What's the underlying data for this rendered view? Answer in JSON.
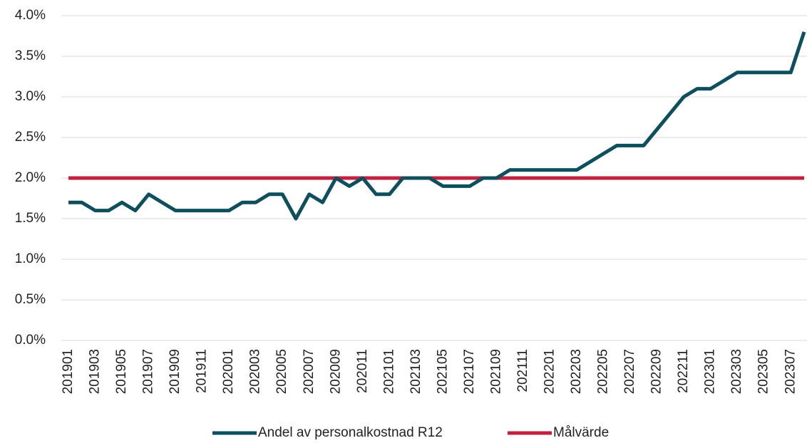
{
  "chart_data": {
    "type": "line",
    "categories": [
      "201901",
      null,
      "201903",
      null,
      "201905",
      null,
      "201907",
      null,
      "201909",
      null,
      "201911",
      null,
      "202001",
      null,
      "202003",
      null,
      "202005",
      null,
      "202007",
      null,
      "202009",
      null,
      "202011",
      null,
      "202101",
      null,
      "202103",
      null,
      "202105",
      null,
      "202107",
      null,
      "202109",
      null,
      "202111",
      null,
      "202201",
      null,
      "202203",
      null,
      "202205",
      null,
      "202207",
      null,
      "202209",
      null,
      "202211",
      null,
      "202301",
      null,
      "202303",
      null,
      "202305",
      null,
      "202307",
      null
    ],
    "series": [
      {
        "name": "Andel av personalkostnad R12",
        "color": "#0d4f5c",
        "values": [
          1.7,
          1.7,
          1.6,
          1.6,
          1.7,
          1.6,
          1.8,
          1.7,
          1.6,
          1.6,
          1.6,
          1.6,
          1.6,
          1.7,
          1.7,
          1.8,
          1.8,
          1.5,
          1.8,
          1.7,
          2.0,
          1.9,
          2.0,
          1.8,
          1.8,
          2.0,
          2.0,
          2.0,
          1.9,
          1.9,
          1.9,
          2.0,
          2.0,
          2.1,
          2.1,
          2.1,
          2.1,
          2.1,
          2.1,
          2.2,
          2.3,
          2.4,
          2.4,
          2.4,
          2.6,
          2.8,
          3.0,
          3.1,
          3.1,
          3.2,
          3.3,
          3.3,
          3.3,
          3.3,
          3.3,
          3.8
        ]
      },
      {
        "name": "Målvärde",
        "color": "#c0213f",
        "values": [
          2,
          2,
          2,
          2,
          2,
          2,
          2,
          2,
          2,
          2,
          2,
          2,
          2,
          2,
          2,
          2,
          2,
          2,
          2,
          2,
          2,
          2,
          2,
          2,
          2,
          2,
          2,
          2,
          2,
          2,
          2,
          2,
          2,
          2,
          2,
          2,
          2,
          2,
          2,
          2,
          2,
          2,
          2,
          2,
          2,
          2,
          2,
          2,
          2,
          2,
          2,
          2,
          2,
          2,
          2,
          2
        ]
      }
    ],
    "ylim": [
      0,
      4
    ],
    "yticks": [
      {
        "value": 0,
        "label": "0.0%"
      },
      {
        "value": 0.5,
        "label": "0.5%"
      },
      {
        "value": 1,
        "label": "1.0%"
      },
      {
        "value": 1.5,
        "label": "1.5%"
      },
      {
        "value": 2,
        "label": "2.0%"
      },
      {
        "value": 2.5,
        "label": "2.5%"
      },
      {
        "value": 3,
        "label": "3.0%"
      },
      {
        "value": 3.5,
        "label": "3.5%"
      },
      {
        "value": 4,
        "label": "4.0%"
      }
    ],
    "grid": true,
    "legend": "bottom"
  }
}
